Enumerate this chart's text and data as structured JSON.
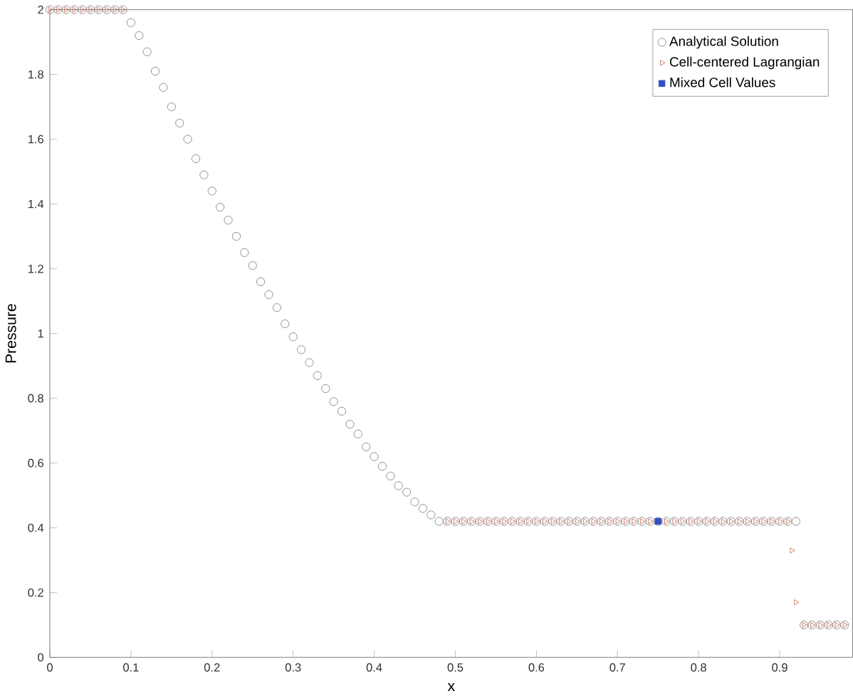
{
  "chart_data": {
    "type": "scatter",
    "xlabel": "x",
    "ylabel": "Pressure",
    "xlim": [
      0,
      0.99
    ],
    "ylim": [
      0,
      2
    ],
    "xticks": [
      0,
      0.1,
      0.2,
      0.3,
      0.4,
      0.5,
      0.6,
      0.7,
      0.8,
      0.9
    ],
    "yticks": [
      0,
      0.2,
      0.4,
      0.6,
      0.8,
      1,
      1.2,
      1.4,
      1.6,
      1.8,
      2
    ],
    "legend": "top right",
    "grid": false,
    "series": [
      {
        "name": "Analytical Solution",
        "color": "#8c8c8c",
        "marker": "circle",
        "x": [
          0,
          0.01,
          0.02,
          0.03,
          0.04,
          0.05,
          0.06,
          0.07,
          0.08,
          0.09,
          0.1,
          0.11,
          0.12,
          0.13,
          0.14,
          0.15,
          0.16,
          0.17,
          0.18,
          0.19,
          0.2,
          0.21,
          0.22,
          0.23,
          0.24,
          0.25,
          0.26,
          0.27,
          0.28,
          0.29,
          0.3,
          0.31,
          0.32,
          0.33,
          0.34,
          0.35,
          0.36,
          0.37,
          0.38,
          0.39,
          0.4,
          0.41,
          0.42,
          0.43,
          0.44,
          0.45,
          0.46,
          0.47,
          0.48,
          0.49,
          0.5,
          0.51,
          0.52,
          0.53,
          0.54,
          0.55,
          0.56,
          0.57,
          0.58,
          0.59,
          0.6,
          0.61,
          0.62,
          0.63,
          0.64,
          0.65,
          0.66,
          0.67,
          0.68,
          0.69,
          0.7,
          0.71,
          0.72,
          0.73,
          0.74,
          0.75,
          0.76,
          0.77,
          0.78,
          0.79,
          0.8,
          0.81,
          0.82,
          0.83,
          0.84,
          0.85,
          0.86,
          0.87,
          0.88,
          0.89,
          0.9,
          0.91,
          0.92,
          0.93,
          0.94,
          0.95,
          0.96,
          0.97,
          0.98
        ],
        "values": [
          2,
          2,
          2,
          2,
          2,
          2,
          2,
          2,
          2,
          2,
          1.96,
          1.92,
          1.87,
          1.81,
          1.76,
          1.7,
          1.65,
          1.6,
          1.54,
          1.49,
          1.44,
          1.39,
          1.35,
          1.3,
          1.25,
          1.21,
          1.16,
          1.12,
          1.08,
          1.03,
          0.99,
          0.95,
          0.91,
          0.87,
          0.83,
          0.79,
          0.76,
          0.72,
          0.69,
          0.65,
          0.62,
          0.59,
          0.56,
          0.53,
          0.51,
          0.48,
          0.46,
          0.44,
          0.42,
          0.42,
          0.42,
          0.42,
          0.42,
          0.42,
          0.42,
          0.42,
          0.42,
          0.42,
          0.42,
          0.42,
          0.42,
          0.42,
          0.42,
          0.42,
          0.42,
          0.42,
          0.42,
          0.42,
          0.42,
          0.42,
          0.42,
          0.42,
          0.42,
          0.42,
          0.42,
          0.42,
          0.42,
          0.42,
          0.42,
          0.42,
          0.42,
          0.42,
          0.42,
          0.42,
          0.42,
          0.42,
          0.42,
          0.42,
          0.42,
          0.42,
          0.42,
          0.42,
          0.42,
          0.1,
          0.1,
          0.1,
          0.1,
          0.1,
          0.1
        ]
      },
      {
        "name": "Cell-centered Lagrangian",
        "color": "#d07a68",
        "marker": "triangle",
        "x": [
          0,
          0.01,
          0.02,
          0.03,
          0.04,
          0.05,
          0.06,
          0.07,
          0.08,
          0.09,
          0.49,
          0.5,
          0.51,
          0.52,
          0.53,
          0.54,
          0.55,
          0.56,
          0.57,
          0.58,
          0.59,
          0.6,
          0.61,
          0.62,
          0.63,
          0.64,
          0.65,
          0.66,
          0.67,
          0.68,
          0.69,
          0.7,
          0.71,
          0.72,
          0.73,
          0.74,
          0.76,
          0.77,
          0.78,
          0.79,
          0.8,
          0.81,
          0.82,
          0.83,
          0.84,
          0.85,
          0.86,
          0.87,
          0.88,
          0.89,
          0.9,
          0.91,
          0.915,
          0.92,
          0.93,
          0.94,
          0.95,
          0.96,
          0.97,
          0.98
        ],
        "values": [
          2,
          2,
          2,
          2,
          2,
          2,
          2,
          2,
          2,
          2,
          0.42,
          0.42,
          0.42,
          0.42,
          0.42,
          0.42,
          0.42,
          0.42,
          0.42,
          0.42,
          0.42,
          0.42,
          0.42,
          0.42,
          0.42,
          0.42,
          0.42,
          0.42,
          0.42,
          0.42,
          0.42,
          0.42,
          0.42,
          0.42,
          0.42,
          0.42,
          0.42,
          0.42,
          0.42,
          0.42,
          0.42,
          0.42,
          0.42,
          0.42,
          0.42,
          0.42,
          0.42,
          0.42,
          0.42,
          0.42,
          0.42,
          0.42,
          0.33,
          0.17,
          0.1,
          0.1,
          0.1,
          0.1,
          0.1,
          0.1
        ]
      },
      {
        "name": "Mixed Cell Values",
        "color": "#3050c0",
        "marker": "square",
        "x": [
          0.75
        ],
        "values": [
          0.42
        ]
      }
    ]
  }
}
